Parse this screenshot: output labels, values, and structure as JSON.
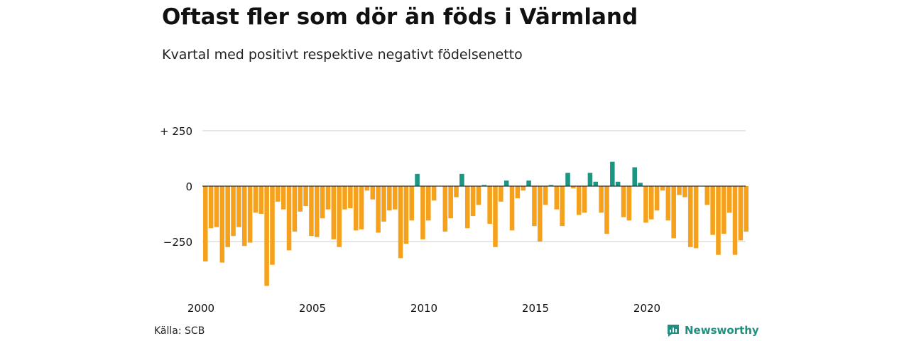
{
  "title": "Oftast fler som dör än föds i Värmland",
  "subtitle": "Kvartal med positivt respektive negativt födelsenetto",
  "source": "Källa: SCB",
  "brand": "Newsworthy",
  "colors": {
    "positive": "#1a9682",
    "negative": "#f5a11c",
    "grid": "#d8d8d8",
    "zero": "#333333",
    "brand": "#1f9080"
  },
  "chart_data": {
    "type": "bar",
    "title": "Oftast fler som dör än föds i Värmland",
    "subtitle": "Kvartal med positivt respektive negativt födelsenetto",
    "ylim": [
      -450,
      250
    ],
    "yticks": [
      250,
      0,
      -250
    ],
    "ytick_labels": [
      "+ 250",
      "0",
      "−250"
    ],
    "xticks": [
      "2000",
      "2005",
      "2010",
      "2015",
      "2020"
    ],
    "grid": true,
    "start_year": 2000,
    "values": [
      -340,
      -190,
      -185,
      -345,
      -275,
      -225,
      -185,
      -270,
      -255,
      -120,
      -125,
      -450,
      -355,
      -70,
      -105,
      -290,
      -205,
      -115,
      -90,
      -225,
      -230,
      -145,
      -105,
      -240,
      -275,
      -105,
      -100,
      -200,
      -195,
      -20,
      -60,
      -210,
      -160,
      -110,
      -105,
      -325,
      -260,
      -155,
      55,
      -240,
      -155,
      -65,
      0,
      -205,
      -145,
      -50,
      55,
      -190,
      -135,
      -85,
      5,
      -170,
      -275,
      -70,
      25,
      -200,
      -55,
      -20,
      25,
      -180,
      -250,
      -85,
      5,
      -105,
      -180,
      60,
      -10,
      -130,
      -120,
      60,
      20,
      -120,
      -215,
      110,
      20,
      -140,
      -155,
      85,
      15,
      -165,
      -150,
      -110,
      -20,
      -155,
      -235,
      -40,
      -50,
      -275,
      -280,
      0,
      -85,
      -220,
      -310,
      -215,
      -120,
      -310,
      -245,
      -205
    ]
  }
}
